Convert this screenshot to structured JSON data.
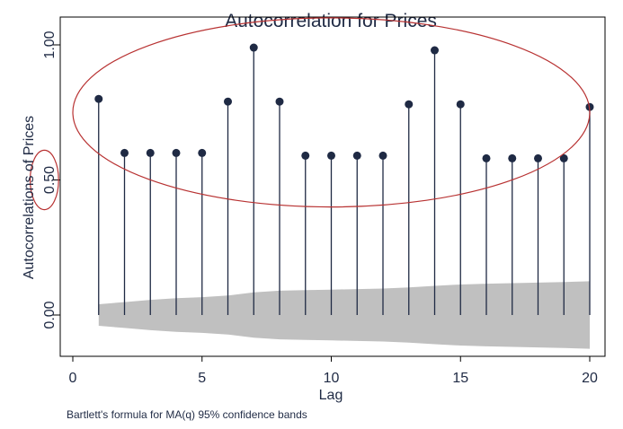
{
  "chart_data": {
    "type": "stem",
    "title": "Autocorrelation for Prices",
    "xlabel": "Lag",
    "ylabel": "Autocorrelations of Prices",
    "note": "Bartlett's formula for MA(q) 95% confidence bands",
    "xlim": [
      0,
      20
    ],
    "ylim": [
      -0.12,
      1.05
    ],
    "xticks": [
      "0",
      "5",
      "10",
      "15",
      "20"
    ],
    "xtick_values": [
      0,
      5,
      10,
      15,
      20
    ],
    "yticks": [
      "0.00",
      "0.50",
      "1.00"
    ],
    "ytick_values": [
      0,
      0.5,
      1
    ],
    "grid": false,
    "colors": {
      "stem": "#1f2a44",
      "band": "#c0c0c0",
      "annotation": "#b83232",
      "text": "#1f2a44"
    },
    "series": [
      {
        "x": [
          1,
          2,
          3,
          4,
          5,
          6,
          7,
          8,
          9,
          10,
          11,
          12,
          13,
          14,
          15,
          16,
          17,
          18,
          19,
          20
        ],
        "values": [
          0.8,
          0.6,
          0.6,
          0.6,
          0.6,
          0.79,
          0.99,
          0.79,
          0.59,
          0.59,
          0.59,
          0.59,
          0.78,
          0.98,
          0.78,
          0.58,
          0.58,
          0.58,
          0.58,
          0.77
        ]
      }
    ],
    "confidence_band": {
      "x": [
        1,
        2,
        3,
        4,
        5,
        6,
        7,
        8,
        9,
        10,
        11,
        12,
        13,
        14,
        15,
        16,
        17,
        18,
        19,
        20
      ],
      "upper": [
        0.04,
        0.048,
        0.056,
        0.062,
        0.066,
        0.072,
        0.084,
        0.09,
        0.092,
        0.094,
        0.096,
        0.098,
        0.102,
        0.108,
        0.113,
        0.116,
        0.118,
        0.12,
        0.122,
        0.125
      ],
      "lower": [
        -0.04,
        -0.048,
        -0.056,
        -0.062,
        -0.066,
        -0.072,
        -0.084,
        -0.09,
        -0.092,
        -0.094,
        -0.096,
        -0.098,
        -0.102,
        -0.108,
        -0.113,
        -0.116,
        -0.118,
        -0.12,
        -0.122,
        -0.125
      ]
    },
    "annotations": [
      {
        "type": "ellipse",
        "encloses": "lags 1-20 autocorrelation markers",
        "cx": 10,
        "cy": 0.75,
        "rx": 10.0,
        "ry": 0.35
      },
      {
        "type": "ellipse",
        "encloses": "y-axis tick 0.50",
        "cx": -1.1,
        "cy": 0.5,
        "rx": 0.55,
        "ry": 0.11
      }
    ]
  }
}
